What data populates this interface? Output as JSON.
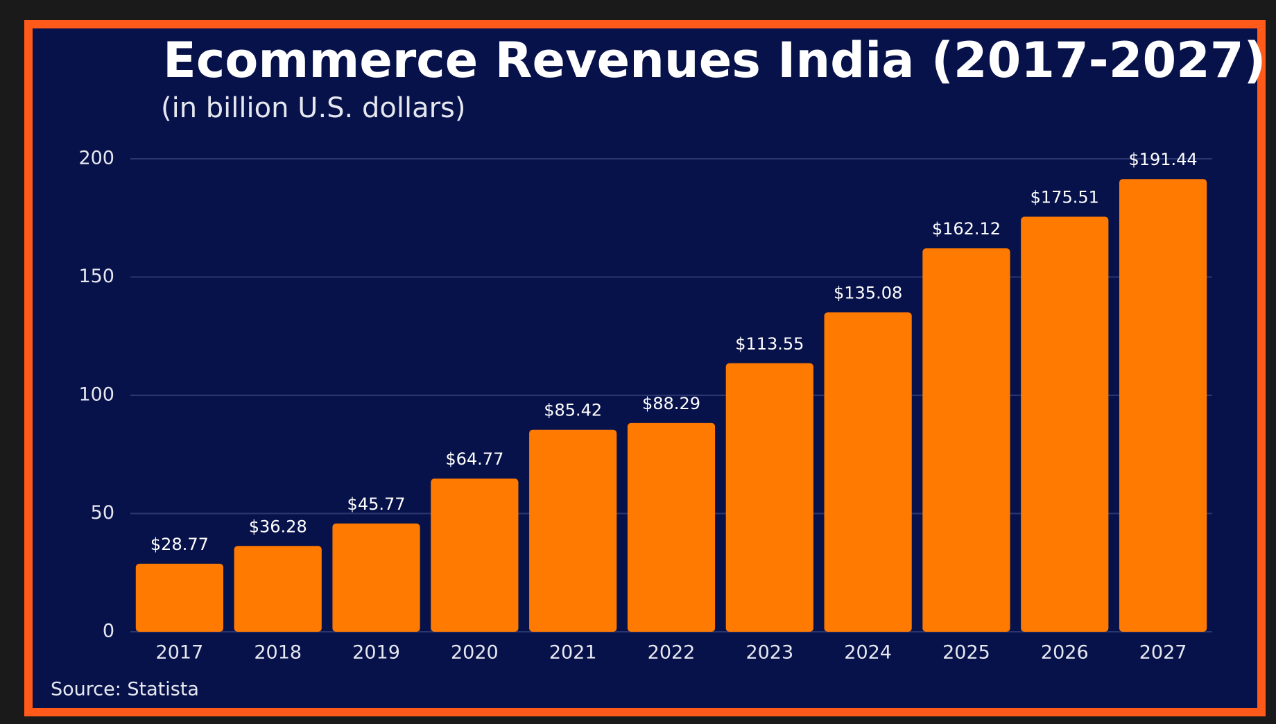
{
  "chart_data": {
    "type": "bar",
    "title": "Ecommerce Revenues India  (2017-2027)",
    "subtitle": "(in billion U.S. dollars)",
    "source": "Source: Statista",
    "categories": [
      "2017",
      "2018",
      "2019",
      "2020",
      "2021",
      "2022",
      "2023",
      "2024",
      "2025",
      "2026",
      "2027"
    ],
    "values": [
      28.77,
      36.28,
      45.77,
      64.77,
      85.42,
      88.29,
      113.55,
      135.08,
      162.12,
      175.51,
      191.44
    ],
    "value_labels": [
      "$28.77",
      "$36.28",
      "$45.77",
      "$64.77",
      "$85.42",
      "$88.29",
      "$113.55",
      "$135.08",
      "$162.12",
      "$175.51",
      "$191.44"
    ],
    "color": "#ff7a00",
    "ylim": [
      0,
      200
    ],
    "yticks": [
      0,
      50,
      100,
      150,
      200
    ],
    "grid": true
  }
}
